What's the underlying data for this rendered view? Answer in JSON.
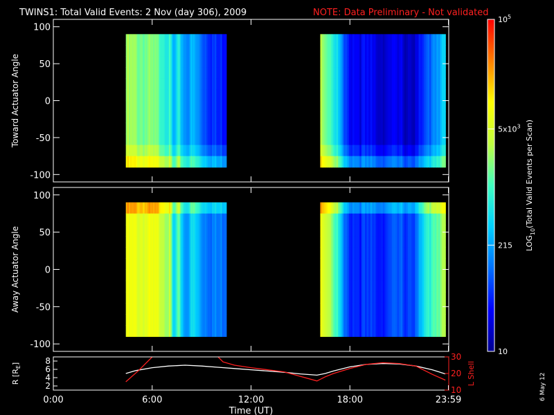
{
  "title": {
    "main": "TWINS1: Total Valid Events:  2 Nov (day 306), 2009",
    "note": "NOTE: Data Preliminary - Not validated",
    "note_color": "#ff2020"
  },
  "stamp": "6 May 12",
  "chart_data": [
    {
      "type": "heatmap",
      "name": "toward",
      "ylabel": "Toward Actuator Angle",
      "ylim": [
        -110,
        110
      ],
      "yticks": [
        100,
        50,
        0,
        -50,
        -100
      ],
      "xlim": [
        0,
        24
      ],
      "data_blocks": [
        [
          4.4,
          10.5
        ],
        [
          16.2,
          23.8
        ]
      ],
      "angle_range": [
        -90,
        90
      ],
      "band_profile": [
        {
          "t": 4.4,
          "v": 0.58
        },
        {
          "t": 5.5,
          "v": 0.56
        },
        {
          "t": 6.5,
          "v": 0.52
        },
        {
          "t": 7.1,
          "v": 0.45
        },
        {
          "t": 7.3,
          "v": 0.3
        },
        {
          "t": 7.6,
          "v": 0.42
        },
        {
          "t": 8.0,
          "v": 0.3
        },
        {
          "t": 8.5,
          "v": 0.33
        },
        {
          "t": 9.0,
          "v": 0.25
        },
        {
          "t": 10.0,
          "v": 0.15
        },
        {
          "t": 10.5,
          "v": 0.17
        },
        {
          "t": 16.2,
          "v": 0.62
        },
        {
          "t": 16.7,
          "v": 0.55
        },
        {
          "t": 17.3,
          "v": 0.38
        },
        {
          "t": 17.7,
          "v": 0.16
        },
        {
          "t": 19.0,
          "v": 0.1
        },
        {
          "t": 21.0,
          "v": 0.08
        },
        {
          "t": 22.0,
          "v": 0.07
        },
        {
          "t": 22.6,
          "v": 0.18
        },
        {
          "t": 23.2,
          "v": 0.32
        },
        {
          "t": 23.8,
          "v": 0.38
        }
      ]
    },
    {
      "type": "heatmap",
      "name": "away",
      "ylabel": "Away Actuator Angle",
      "ylim": [
        -110,
        110
      ],
      "yticks": [
        100,
        50,
        0,
        -50,
        -100
      ],
      "xlim": [
        0,
        24
      ],
      "data_blocks": [
        [
          4.4,
          10.5
        ],
        [
          16.2,
          23.8
        ]
      ],
      "angle_range": [
        -90,
        90
      ],
      "band_profile": [
        {
          "t": 4.4,
          "v": 0.7
        },
        {
          "t": 5.5,
          "v": 0.7
        },
        {
          "t": 6.5,
          "v": 0.68
        },
        {
          "t": 7.1,
          "v": 0.6
        },
        {
          "t": 7.3,
          "v": 0.35
        },
        {
          "t": 7.6,
          "v": 0.5
        },
        {
          "t": 8.0,
          "v": 0.3
        },
        {
          "t": 8.5,
          "v": 0.4
        },
        {
          "t": 9.0,
          "v": 0.3
        },
        {
          "t": 10.0,
          "v": 0.25
        },
        {
          "t": 10.5,
          "v": 0.28
        },
        {
          "t": 16.2,
          "v": 0.72
        },
        {
          "t": 16.7,
          "v": 0.66
        },
        {
          "t": 17.3,
          "v": 0.45
        },
        {
          "t": 17.7,
          "v": 0.2
        },
        {
          "t": 19.0,
          "v": 0.16
        },
        {
          "t": 21.0,
          "v": 0.2
        },
        {
          "t": 22.0,
          "v": 0.22
        },
        {
          "t": 22.6,
          "v": 0.42
        },
        {
          "t": 23.2,
          "v": 0.55
        },
        {
          "t": 23.8,
          "v": 0.6
        }
      ]
    },
    {
      "type": "line",
      "name": "orbit",
      "ylabel_left": "R [R",
      "ylabel_left_sub": "E",
      "ylabel_left_end": "]",
      "ylabel_right": "L Shell",
      "ylim_left": [
        1,
        9
      ],
      "yticks_left": [
        8,
        6,
        4,
        2
      ],
      "ylim_right": [
        10,
        30
      ],
      "yticks_right": [
        30,
        20,
        10
      ],
      "right_axis_color": "#ff2020",
      "xlim": [
        0,
        24
      ],
      "xticks": [
        {
          "t": 0,
          "label": "0:00"
        },
        {
          "t": 6,
          "label": "6:00"
        },
        {
          "t": 12,
          "label": "12:00"
        },
        {
          "t": 18,
          "label": "18:00"
        },
        {
          "t": 23.98,
          "label": "23:59"
        }
      ],
      "xlabel": "Time (UT)",
      "series": [
        {
          "color": "#ffffff",
          "axis": "left",
          "x": [
            4.4,
            5,
            6,
            7,
            8,
            9,
            10,
            11,
            12,
            13,
            14,
            15,
            16,
            16.5,
            17,
            18,
            19,
            20,
            21,
            22,
            23,
            23.8
          ],
          "y": [
            5.0,
            5.7,
            6.4,
            6.8,
            7.0,
            6.8,
            6.5,
            6.2,
            5.9,
            5.6,
            5.3,
            4.9,
            4.6,
            5.0,
            5.6,
            6.6,
            7.2,
            7.4,
            7.3,
            6.8,
            5.9,
            4.9
          ]
        },
        {
          "color": "#ff2020",
          "axis": "right",
          "x": [
            4.4,
            5.2,
            6.0,
            6.1,
            9.9,
            10.3,
            11,
            12,
            14,
            16,
            16.5,
            17,
            18,
            19,
            20,
            21,
            22,
            23,
            23.8
          ],
          "y": [
            15,
            22,
            30,
            31,
            31,
            27,
            25,
            23.5,
            21,
            15.5,
            18,
            20,
            23,
            25.5,
            26.5,
            26,
            24.5,
            19.5,
            16
          ]
        }
      ]
    }
  ],
  "colorbar": {
    "label_main": "LOG",
    "label_sub": "10",
    "label_rest": "(Total Valid  Events per Scan)",
    "ticks": [
      {
        "pos": 1.0,
        "base": "10",
        "exp": "5"
      },
      {
        "pos": 0.67,
        "base": "5x10",
        "exp": "3"
      },
      {
        "pos": 0.32,
        "base": "215",
        "exp": ""
      },
      {
        "pos": 0.0,
        "base": "10",
        "exp": ""
      }
    ],
    "stops": [
      "#000090",
      "#0000ff",
      "#0070ff",
      "#00d0ff",
      "#40ffc0",
      "#c0ff40",
      "#ffff00",
      "#ff8000",
      "#ff0000"
    ]
  }
}
